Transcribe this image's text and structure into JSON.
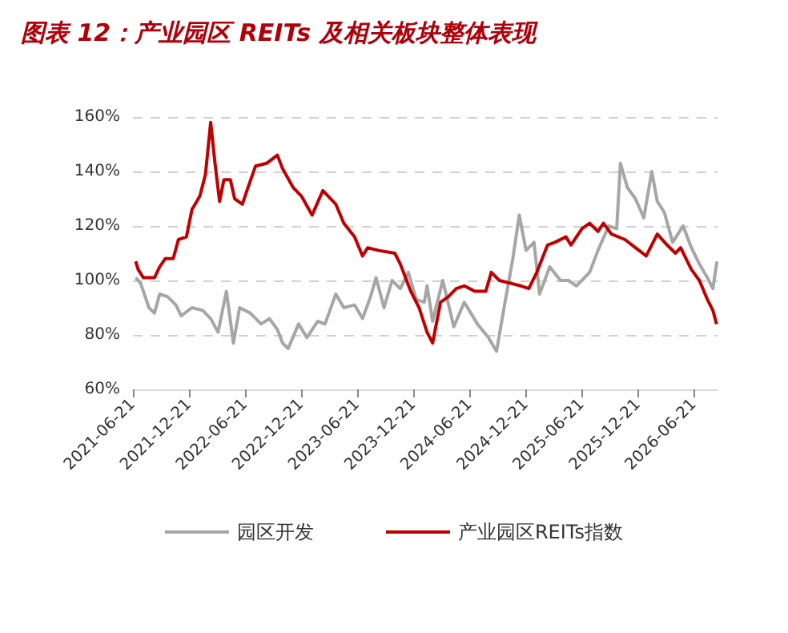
{
  "chart_data": {
    "type": "line",
    "title": "图表 12：产业园区 REITs 及相关板块整体表现",
    "xlim": [
      "2021-06-21",
      "2026-09-05"
    ],
    "xticks": [
      "2021-06-21",
      "2021-12-21",
      "2022-06-21",
      "2022-12-21",
      "2023-06-21",
      "2023-12-21",
      "2024-06-21",
      "2024-12-21",
      "2025-06-21",
      "2025-12-21",
      "2026-06-21"
    ],
    "ylim": [
      60,
      160
    ],
    "yticks": [
      {
        "value": 60,
        "label": "60%"
      },
      {
        "value": 80,
        "label": "80%"
      },
      {
        "value": 100,
        "label": "100%"
      },
      {
        "value": 120,
        "label": "120%"
      },
      {
        "value": 140,
        "label": "140%"
      },
      {
        "value": 160,
        "label": "160%"
      }
    ],
    "grid": "y",
    "legend": "bottom",
    "marker": "none",
    "line_style": "solid",
    "series": [
      {
        "name": "园区开发",
        "color": "#a6a6a6",
        "x": [
          "2021-06-30",
          "2021-07-16",
          "2021-08-12",
          "2021-08-30",
          "2021-09-16",
          "2021-10-12",
          "2021-11-08",
          "2021-11-25",
          "2021-12-30",
          "2022-02-03",
          "2022-03-01",
          "2022-03-25",
          "2022-04-21",
          "2022-05-14",
          "2022-06-03",
          "2022-07-08",
          "2022-08-12",
          "2022-09-08",
          "2022-10-04",
          "2022-10-21",
          "2022-11-08",
          "2022-12-12",
          "2023-01-08",
          "2023-02-12",
          "2023-03-08",
          "2023-04-12",
          "2023-05-08",
          "2023-06-12",
          "2023-07-08",
          "2023-08-03",
          "2023-08-21",
          "2023-09-16",
          "2023-10-12",
          "2023-11-08",
          "2023-12-04",
          "2023-12-30",
          "2024-01-25",
          "2024-02-03",
          "2024-02-21",
          "2024-03-25",
          "2024-04-30",
          "2024-06-03",
          "2024-07-16",
          "2024-08-21",
          "2024-09-16",
          "2024-10-12",
          "2024-11-08",
          "2024-11-29",
          "2024-12-21",
          "2025-01-16",
          "2025-02-03",
          "2025-03-08",
          "2025-04-12",
          "2025-05-08",
          "2025-06-03",
          "2025-07-16",
          "2025-08-12",
          "2025-09-16",
          "2025-10-12",
          "2025-10-24",
          "2025-11-16",
          "2025-12-12",
          "2026-01-08",
          "2026-02-03",
          "2026-02-21",
          "2026-03-16",
          "2026-04-12",
          "2026-05-16",
          "2026-06-12",
          "2026-07-08",
          "2026-08-03",
          "2026-08-21",
          "2026-09-03"
        ],
        "values": [
          101,
          99,
          90,
          88,
          95,
          94,
          91,
          87,
          90,
          89,
          86,
          81,
          96,
          77,
          90,
          88,
          84,
          86,
          82,
          77,
          75,
          84,
          79,
          85,
          84,
          95,
          90,
          91,
          86,
          94,
          101,
          90,
          100,
          97,
          103,
          93,
          92,
          98,
          85,
          100,
          83,
          92,
          84,
          79,
          74,
          91,
          108,
          124,
          111,
          114,
          95,
          105,
          100,
          100,
          98,
          103,
          111,
          120,
          119,
          143,
          134,
          130,
          123,
          140,
          129,
          125,
          114,
          120,
          112,
          106,
          101,
          97,
          107
        ]
      },
      {
        "name": "产业园区REITs指数",
        "color": "#c00000",
        "x": [
          "2021-06-30",
          "2021-07-08",
          "2021-07-25",
          "2021-08-30",
          "2021-09-16",
          "2021-10-04",
          "2021-10-30",
          "2021-11-16",
          "2021-12-12",
          "2021-12-30",
          "2022-01-25",
          "2022-02-12",
          "2022-03-01",
          "2022-03-15",
          "2022-03-30",
          "2022-04-13",
          "2022-05-04",
          "2022-05-18",
          "2022-06-12",
          "2022-06-30",
          "2022-07-25",
          "2022-08-30",
          "2022-10-04",
          "2022-10-21",
          "2022-11-25",
          "2022-12-21",
          "2023-01-25",
          "2023-03-01",
          "2023-04-12",
          "2023-05-08",
          "2023-06-12",
          "2023-07-08",
          "2023-07-25",
          "2023-08-30",
          "2023-10-21",
          "2023-11-08",
          "2023-12-12",
          "2024-01-08",
          "2024-02-03",
          "2024-02-21",
          "2024-03-18",
          "2024-04-12",
          "2024-05-08",
          "2024-06-03",
          "2024-07-08",
          "2024-08-12",
          "2024-08-30",
          "2024-09-25",
          "2024-10-30",
          "2024-12-04",
          "2024-12-30",
          "2025-01-25",
          "2025-03-01",
          "2025-03-25",
          "2025-04-30",
          "2025-05-16",
          "2025-06-21",
          "2025-07-16",
          "2025-08-12",
          "2025-08-30",
          "2025-09-25",
          "2025-11-08",
          "2025-12-12",
          "2026-01-16",
          "2026-02-21",
          "2026-03-25",
          "2026-04-21",
          "2026-05-08",
          "2026-06-12",
          "2026-07-08",
          "2026-08-03",
          "2026-08-21",
          "2026-09-02"
        ],
        "values": [
          107,
          104,
          101,
          101,
          105,
          108,
          108,
          115,
          116,
          126,
          131,
          139,
          158,
          143,
          129,
          137,
          137,
          130,
          128,
          134,
          142,
          143,
          146,
          141,
          134,
          131,
          124,
          133,
          128,
          121,
          116,
          109,
          112,
          111,
          110,
          106,
          96,
          90,
          81,
          77,
          92,
          94,
          97,
          98,
          96,
          96,
          103,
          100,
          99,
          98,
          97,
          103,
          113,
          114,
          116,
          113,
          119,
          121,
          118,
          121,
          117,
          115,
          112,
          109,
          117,
          113,
          110,
          112,
          104,
          100,
          93,
          89,
          84
        ]
      }
    ]
  }
}
